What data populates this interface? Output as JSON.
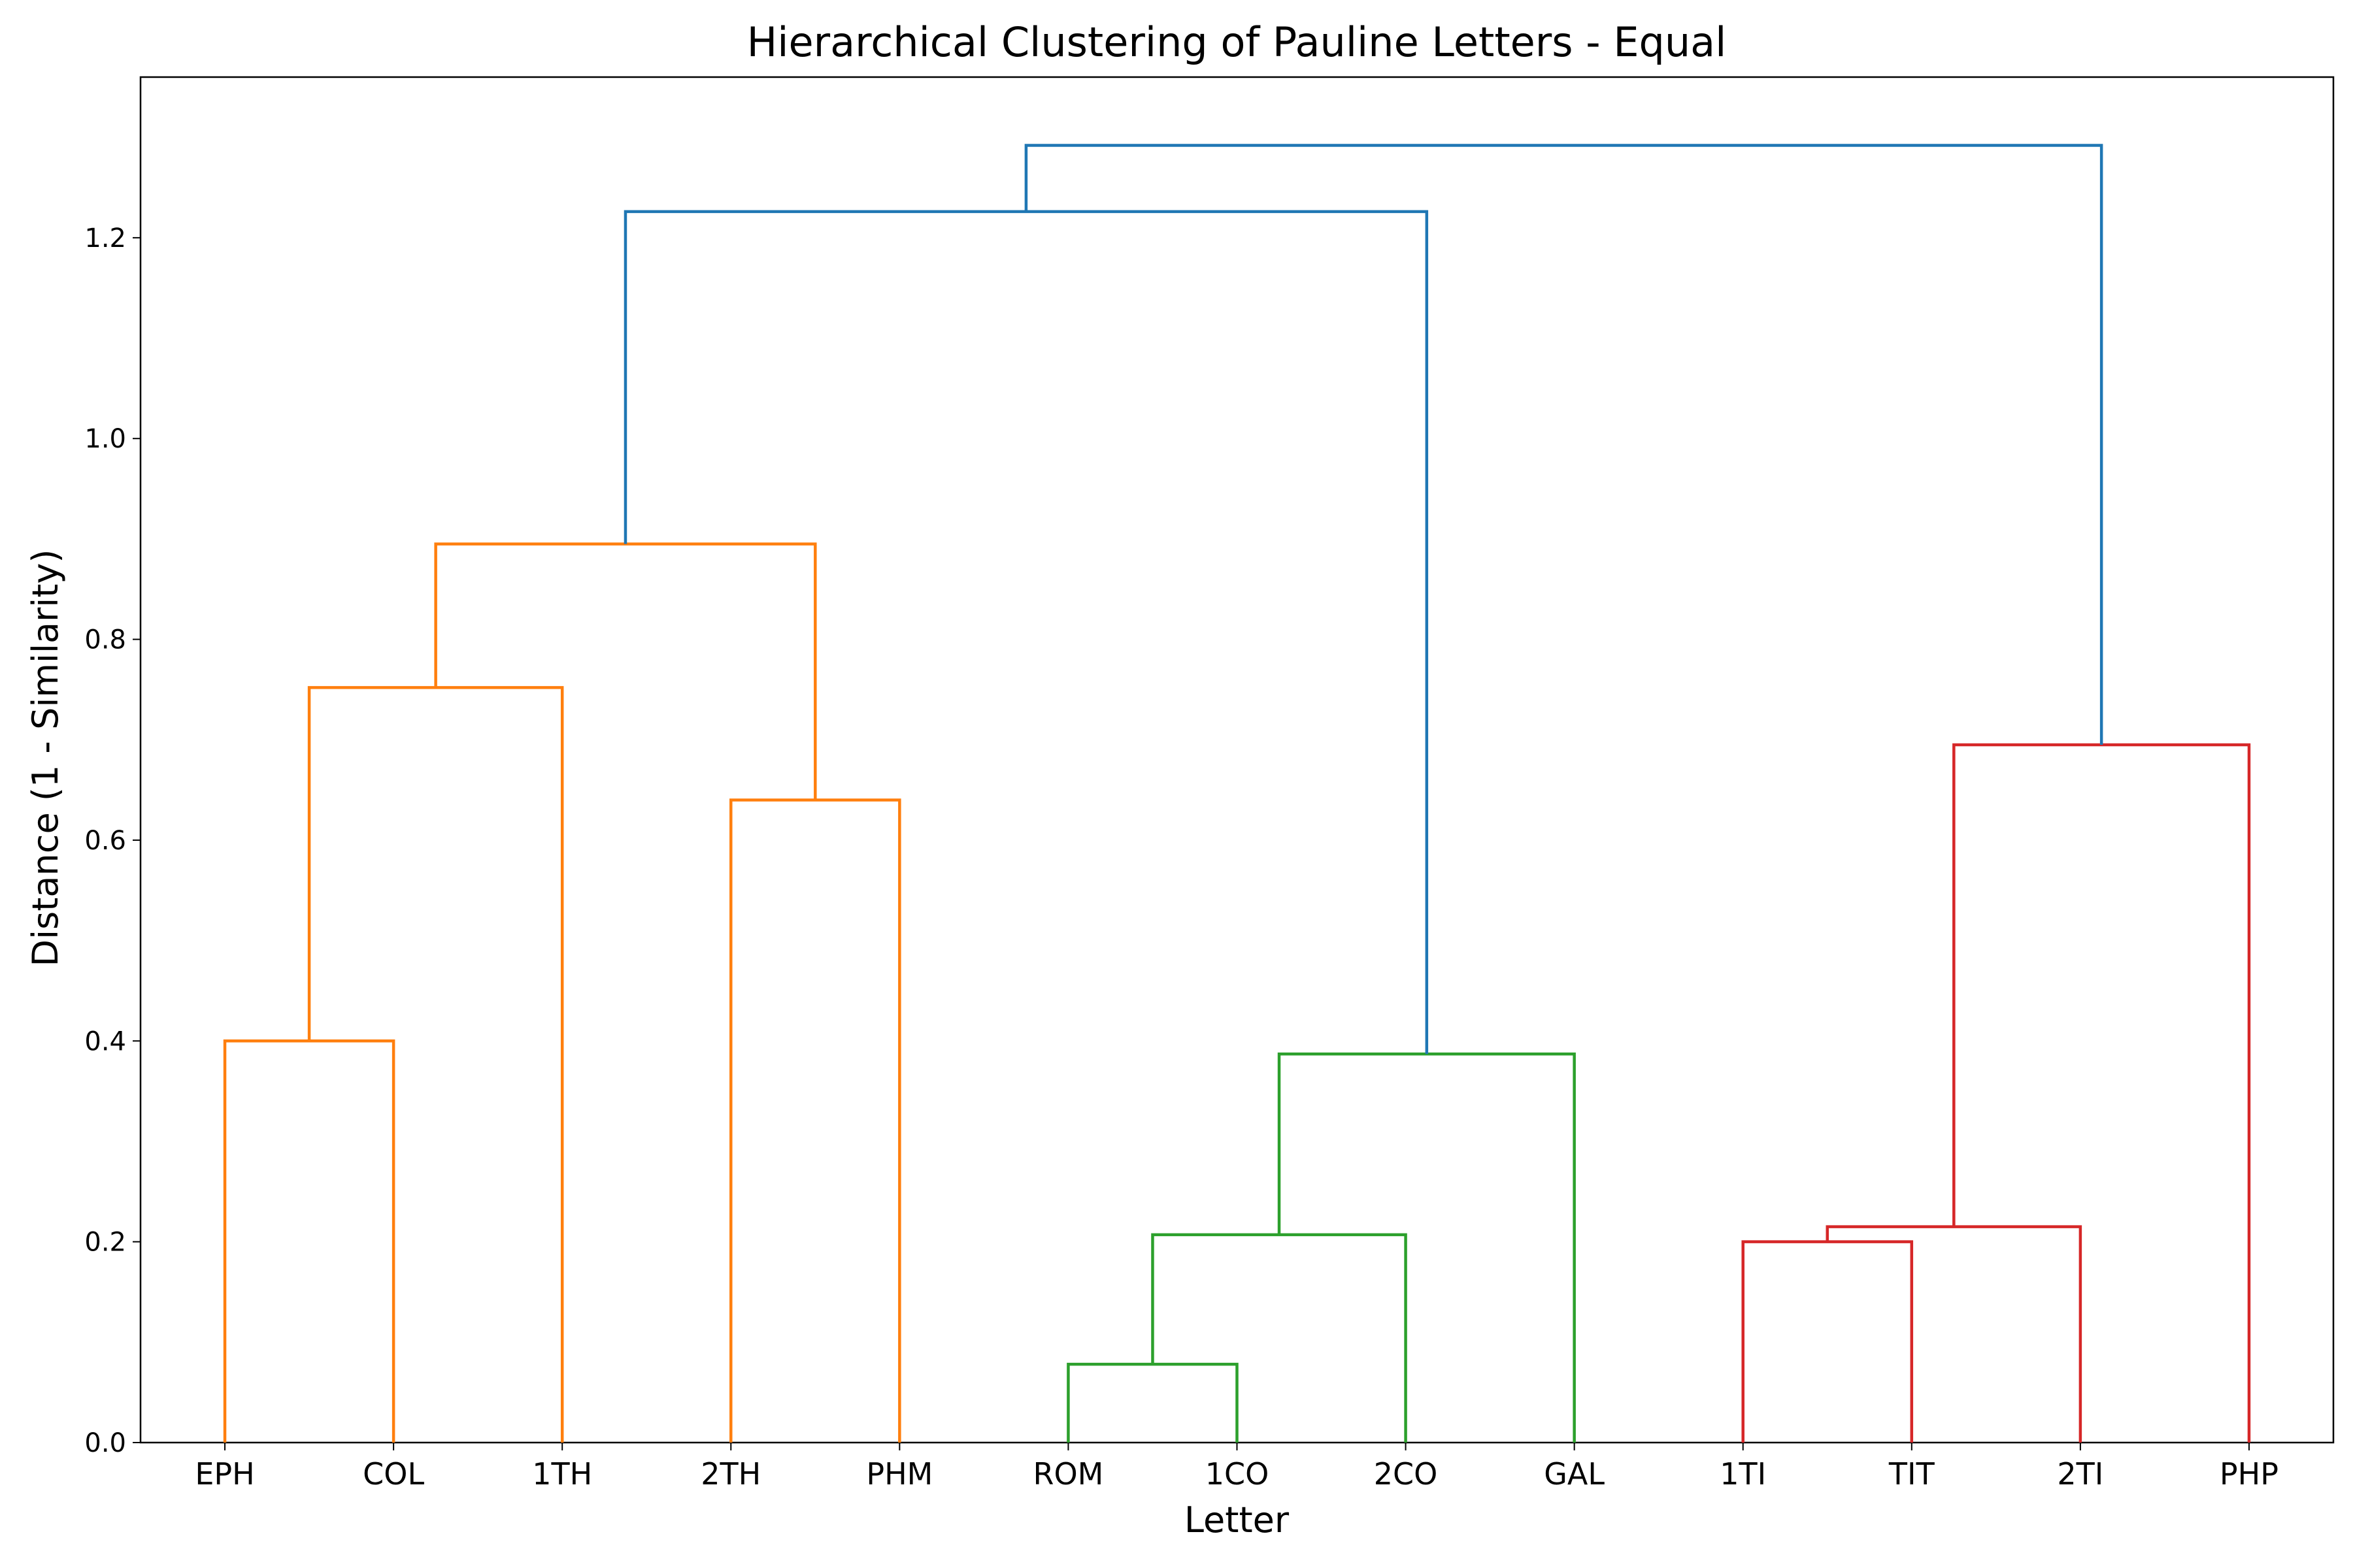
{
  "chart_data": {
    "type": "dendrogram",
    "title": "Hierarchical Clustering of Pauline Letters - Equal",
    "xlabel": "Letter",
    "ylabel": "Distance (1 - Similarity)",
    "ylim": [
      0,
      1.36
    ],
    "yticks": [
      0.0,
      0.2,
      0.4,
      0.6,
      0.8,
      1.0,
      1.2
    ],
    "ytick_labels": [
      "0.0",
      "0.2",
      "0.4",
      "0.6",
      "0.8",
      "1.0",
      "1.2"
    ],
    "leaves": [
      "EPH",
      "COL",
      "1TH",
      "2TH",
      "PHM",
      "ROM",
      "1CO",
      "2CO",
      "GAL",
      "1TI",
      "TIT",
      "2TI",
      "PHP"
    ],
    "grid": false,
    "colors": {
      "cluster_1": "#ff7f0e",
      "cluster_2": "#2ca02c",
      "cluster_3": "#d62728",
      "above_threshold": "#1f77b4"
    },
    "merges": [
      {
        "left": "EPH",
        "right": "COL",
        "distance": 0.4,
        "color": "cluster_1"
      },
      {
        "left": "EPH+COL",
        "right": "1TH",
        "distance": 0.752,
        "color": "cluster_1"
      },
      {
        "left": "2TH",
        "right": "PHM",
        "distance": 0.64,
        "color": "cluster_1"
      },
      {
        "left": "EPH+COL+1TH",
        "right": "2TH+PHM",
        "distance": 0.895,
        "color": "cluster_1"
      },
      {
        "left": "ROM",
        "right": "1CO",
        "distance": 0.078,
        "color": "cluster_2"
      },
      {
        "left": "ROM+1CO",
        "right": "2CO",
        "distance": 0.207,
        "color": "cluster_2"
      },
      {
        "left": "ROM+1CO+2CO",
        "right": "GAL",
        "distance": 0.387,
        "color": "cluster_2"
      },
      {
        "left": "1TI",
        "right": "TIT",
        "distance": 0.2,
        "color": "cluster_3"
      },
      {
        "left": "1TI+TIT",
        "right": "2TI",
        "distance": 0.215,
        "color": "cluster_3"
      },
      {
        "left": "1TI+TIT+2TI",
        "right": "PHP",
        "distance": 0.695,
        "color": "cluster_3"
      },
      {
        "left": "EPH..PHM",
        "right": "ROM..GAL",
        "distance": 1.226,
        "color": "above_threshold"
      },
      {
        "left": "EPH..GAL",
        "right": "1TI..PHP",
        "distance": 1.292,
        "color": "above_threshold"
      }
    ]
  }
}
